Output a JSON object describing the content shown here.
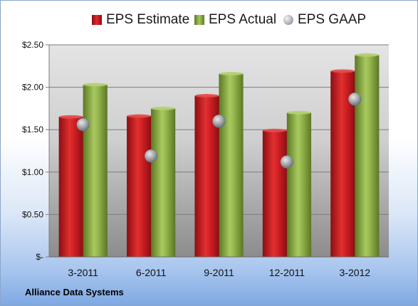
{
  "chart_data": {
    "type": "bar",
    "categories": [
      "3-2011",
      "6-2011",
      "9-2011",
      "12-2011",
      "3-2012"
    ],
    "series": [
      {
        "name": "EPS Estimate",
        "kind": "bar",
        "color": "#c8191f",
        "values": [
          1.65,
          1.66,
          1.9,
          1.49,
          2.19
        ]
      },
      {
        "name": "EPS Actual",
        "kind": "bar",
        "color": "#8fb04b",
        "values": [
          2.03,
          1.75,
          2.16,
          1.7,
          2.38
        ]
      },
      {
        "name": "EPS GAAP",
        "kind": "marker",
        "color": "#9aa0a8",
        "values": [
          1.56,
          1.19,
          1.6,
          1.12,
          1.86
        ]
      }
    ],
    "yticks": [
      {
        "value": 0,
        "label": "$-"
      },
      {
        "value": 0.5,
        "label": "$0.50"
      },
      {
        "value": 1.0,
        "label": "$1.00"
      },
      {
        "value": 1.5,
        "label": "$1.50"
      },
      {
        "value": 2.0,
        "label": "$2.00"
      },
      {
        "value": 2.5,
        "label": "$2.50"
      }
    ],
    "ylim": [
      0,
      2.5
    ],
    "grid": true,
    "legend_position": "top",
    "footer": "Alliance Data Systems"
  }
}
